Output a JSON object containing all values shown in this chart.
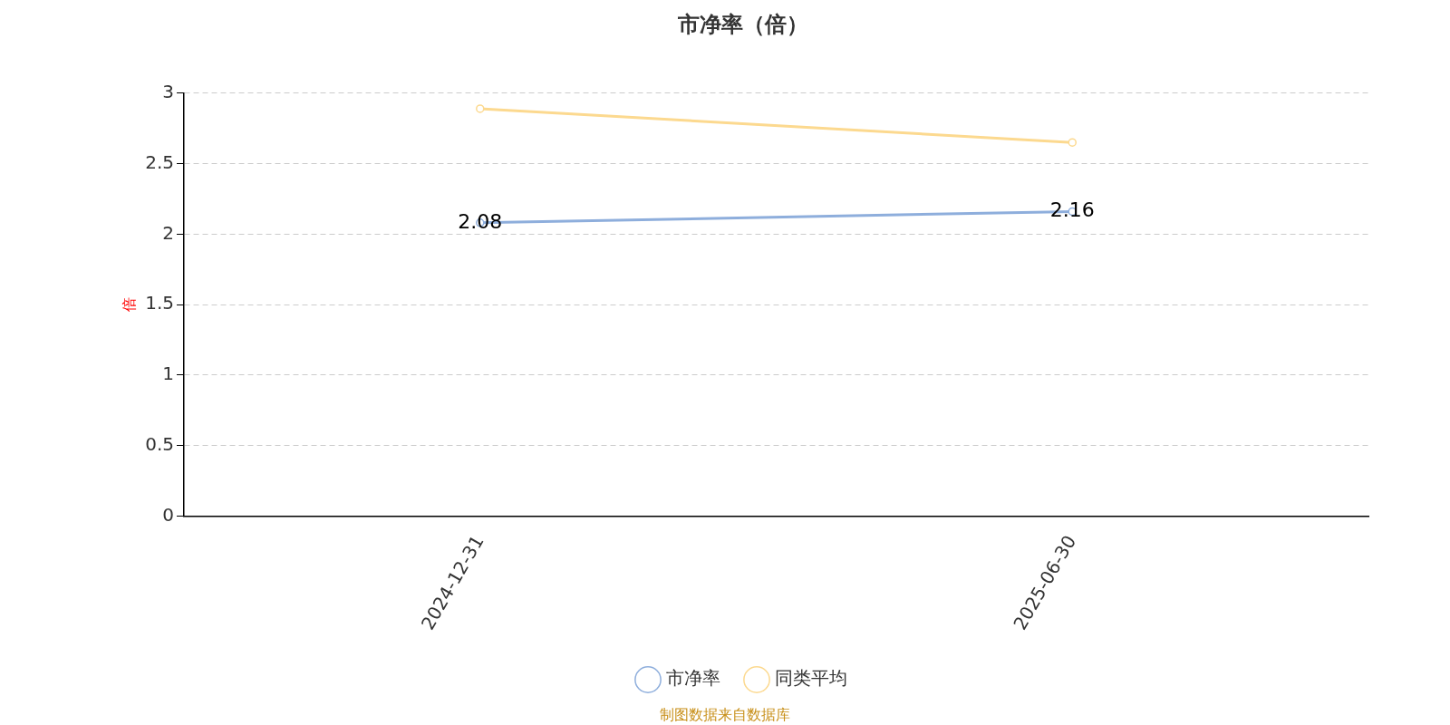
{
  "chart_data": {
    "type": "line",
    "title": "市净率（倍）",
    "ylabel": "倍",
    "categories": [
      "2024-12-31",
      "2025-06-30"
    ],
    "series": [
      {
        "name": "市净率",
        "color": "#8eaedc",
        "values": [
          2.08,
          2.16
        ],
        "value_labels": [
          "2.08",
          "2.16"
        ]
      },
      {
        "name": "同类平均",
        "color": "#fcd98f",
        "values": [
          2.89,
          2.65
        ]
      }
    ],
    "ylim": [
      0,
      3
    ],
    "yticks": [
      0,
      0.5,
      1,
      1.5,
      2,
      2.5,
      3
    ],
    "grid": "y",
    "legend": "bottom",
    "marker": "circle",
    "line_style": "solid",
    "annotations": [
      "制图数据来自数据库"
    ]
  }
}
